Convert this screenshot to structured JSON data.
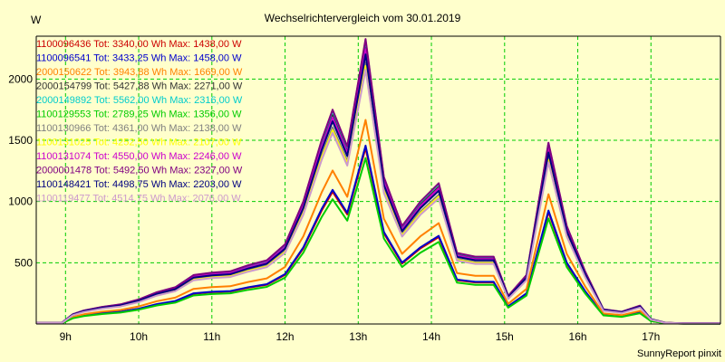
{
  "chart_data": {
    "type": "line",
    "title": "Wechselrichtervergleich vom 30.01.2019",
    "ylabel": "W",
    "xlabel": "",
    "credit": "SunnyReport pinxit",
    "grid": true,
    "legend_placement": "top-left",
    "ylim": [
      0,
      2350
    ],
    "xlim": [
      8.6,
      17.95
    ],
    "y_ticks": [
      500,
      1000,
      1500,
      2000
    ],
    "y_tick_labels": [
      "500",
      "1000",
      "1500",
      "2000"
    ],
    "x_ticks": [
      9,
      10,
      11,
      12,
      13,
      14,
      15,
      16,
      17
    ],
    "x_tick_labels": [
      "9h",
      "10h",
      "11h",
      "12h",
      "13h",
      "14h",
      "15h",
      "16h",
      "17h"
    ],
    "colors": {
      "background": "#ffffcc",
      "grid": "#00cc00",
      "axis": "#000000"
    },
    "series": [
      {
        "legend": "1100096436 Tot: 3340,00 Wh Max: 1438,00 W",
        "color": "#cc0000",
        "scale": 0.617
      },
      {
        "legend": "1100096541 Tot: 3433,25 Wh Max: 1458,00 W",
        "color": "#0000cc",
        "scale": 0.626
      },
      {
        "legend": "2000150622 Tot: 3943,88 Wh Max: 1669,00 W",
        "color": "#ff8000",
        "scale": 0.716
      },
      {
        "legend": "2000154799 Tot: 5427,88 Wh Max: 2271,00 W",
        "color": "#333333",
        "scale": 0.975
      },
      {
        "legend": "2000149892 Tot: 5562,00 Wh Max: 2316,00 W",
        "color": "#00cccc",
        "scale": 0.995
      },
      {
        "legend": "1100129553 Tot: 2789,25 Wh Max: 1356,00 W",
        "color": "#00cc00",
        "scale": 0.582
      },
      {
        "legend": "1100130966 Tot: 4361,00 Wh Max: 2138,00 W",
        "color": "#808080",
        "scale": 0.918
      },
      {
        "legend": "1100131025 Tot: 4252,50 Wh Max: 2107,00 W",
        "color": "#ffff00",
        "scale": 0.905
      },
      {
        "legend": "1100131074 Tot: 4550,00 Wh Max: 2246,00 W",
        "color": "#cc00cc",
        "scale": 0.964
      },
      {
        "legend": "2000001478 Tot: 5492,50 Wh Max: 2327,00 W",
        "color": "#800080",
        "scale": 1.0
      },
      {
        "legend": "1100148421 Tot: 4498,75 Wh Max: 2203,00 W",
        "color": "#000080",
        "scale": 0.946
      },
      {
        "legend": "1100119477 Tot: 4514,75 Wh Max: 2076,00 W",
        "color": "#cc99cc",
        "scale": 0.892
      }
    ],
    "x": [
      8.6,
      8.95,
      9.1,
      9.25,
      9.5,
      9.75,
      10.0,
      10.25,
      10.5,
      10.75,
      11.0,
      11.25,
      11.5,
      11.75,
      12.0,
      12.25,
      12.5,
      12.65,
      12.85,
      13.1,
      13.35,
      13.6,
      13.85,
      14.1,
      14.35,
      14.6,
      14.85,
      15.05,
      15.3,
      15.6,
      15.85,
      16.1,
      16.35,
      16.6,
      16.85,
      17.0,
      17.2,
      17.45,
      17.95
    ],
    "profile": [
      10,
      10,
      80,
      110,
      140,
      160,
      200,
      260,
      300,
      400,
      420,
      430,
      480,
      520,
      650,
      1000,
      1500,
      1750,
      1450,
      2327,
      1200,
      800,
      1000,
      1150,
      580,
      550,
      550,
      230,
      400,
      1480,
      800,
      430,
      120,
      100,
      150,
      40,
      10,
      5,
      5
    ],
    "profile_note": "Peak near 13h; second peak near 15.6h"
  }
}
